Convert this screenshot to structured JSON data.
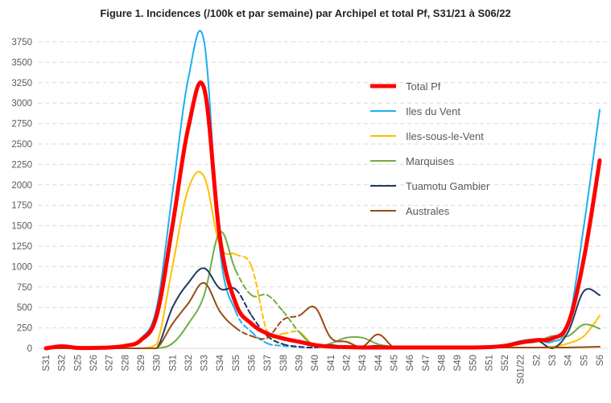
{
  "chart_data": {
    "type": "line",
    "title": "Figure 1. Incidences (/100k et par semaine) par Archipel et total Pf, S31/21 à S06/22",
    "xlabel": "",
    "ylabel": "",
    "ylim": [
      0,
      3750
    ],
    "yticks": [
      0,
      250,
      500,
      750,
      1000,
      1250,
      1500,
      1750,
      2000,
      2250,
      2500,
      2750,
      3000,
      3250,
      3500,
      3750
    ],
    "grid": "horizontal dashed",
    "legend_position": "right",
    "categories": [
      "S31",
      "S32",
      "S25",
      "S26",
      "S27",
      "S28",
      "S29",
      "S30",
      "S31",
      "S32",
      "S33",
      "S34",
      "S35",
      "S36",
      "S37",
      "S38",
      "S39",
      "S40",
      "S41",
      "S42",
      "S43",
      "S44",
      "S45",
      "S46",
      "S47",
      "S48",
      "S49",
      "S50",
      "S51",
      "S52",
      "S01/22",
      "S2",
      "S3",
      "S4",
      "S5",
      "S6"
    ],
    "series": [
      {
        "name": "Total Pf",
        "color": "#ff0000",
        "dashed_range": null,
        "values": [
          0,
          25,
          5,
          5,
          10,
          30,
          100,
          400,
          1500,
          2700,
          3180,
          1350,
          550,
          300,
          180,
          120,
          80,
          40,
          20,
          15,
          10,
          10,
          10,
          10,
          10,
          10,
          10,
          10,
          15,
          30,
          70,
          100,
          120,
          300,
          1100,
          2300
        ]
      },
      {
        "name": "Iles du Vent",
        "color": "#1ab0f0",
        "dashed_range": [
          "S35",
          "S40"
        ],
        "values": [
          0,
          20,
          5,
          5,
          10,
          40,
          120,
          500,
          1900,
          3300,
          3750,
          1200,
          450,
          200,
          60,
          30,
          15,
          10,
          10,
          10,
          10,
          10,
          10,
          10,
          10,
          10,
          10,
          10,
          20,
          40,
          90,
          110,
          80,
          300,
          1500,
          2920
        ]
      },
      {
        "name": "Iles-sous-le-Vent",
        "color": "#ffc000",
        "dashed_range": [
          "S35",
          "S39"
        ],
        "values": [
          0,
          0,
          0,
          0,
          0,
          0,
          0,
          50,
          1000,
          1950,
          2100,
          1250,
          1150,
          1000,
          200,
          180,
          200,
          20,
          10,
          10,
          10,
          10,
          10,
          10,
          10,
          10,
          10,
          10,
          10,
          10,
          10,
          10,
          20,
          60,
          150,
          400
        ]
      },
      {
        "name": "Marquises",
        "color": "#70ad47",
        "dashed_range": [
          "S35",
          "S39"
        ],
        "values": [
          0,
          0,
          0,
          0,
          0,
          0,
          0,
          0,
          60,
          300,
          650,
          1420,
          950,
          650,
          650,
          450,
          200,
          30,
          60,
          130,
          130,
          50,
          20,
          20,
          20,
          20,
          20,
          20,
          20,
          30,
          60,
          80,
          150,
          150,
          290,
          240
        ]
      },
      {
        "name": "Tuamotu Gambier",
        "color": "#203864",
        "dashed_range": [
          "S35",
          "S40"
        ],
        "values": [
          0,
          0,
          0,
          0,
          0,
          0,
          0,
          0,
          500,
          800,
          980,
          730,
          720,
          400,
          150,
          50,
          20,
          10,
          40,
          10,
          20,
          30,
          10,
          10,
          10,
          10,
          10,
          10,
          10,
          20,
          60,
          100,
          0,
          200,
          700,
          650
        ]
      },
      {
        "name": "Australes",
        "color": "#9c4a12",
        "dashed_range": [
          "S35",
          "S39"
        ],
        "values": [
          0,
          0,
          0,
          0,
          0,
          0,
          0,
          0,
          300,
          550,
          800,
          450,
          250,
          150,
          130,
          350,
          400,
          500,
          130,
          80,
          20,
          170,
          10,
          10,
          10,
          20,
          20,
          10,
          10,
          10,
          10,
          10,
          10,
          10,
          15,
          20
        ]
      }
    ]
  }
}
